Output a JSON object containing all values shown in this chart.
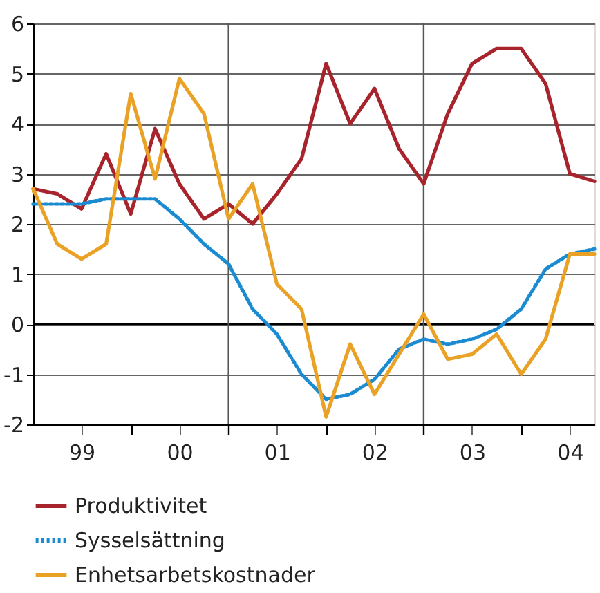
{
  "chart_data": {
    "type": "line",
    "x": [
      "1999-01-01",
      "1999-04-01",
      "1999-07-01",
      "1999-10-01",
      "2000-01-01",
      "2000-04-01",
      "2000-07-01",
      "2000-10-01",
      "2001-01-01",
      "2001-04-01",
      "2001-07-01",
      "2001-10-01",
      "2002-01-01",
      "2002-04-01",
      "2002-07-01",
      "2002-10-01",
      "2003-01-01",
      "2003-04-01",
      "2003-07-01",
      "2003-10-01",
      "2004-01-01",
      "2004-04-01",
      "2004-07-01",
      "2004-10-01"
    ],
    "series": [
      {
        "name": "Produktivitet",
        "color": "#a8242c",
        "line_style": "solid",
        "values": [
          2.7,
          2.6,
          2.3,
          3.4,
          2.2,
          3.9,
          2.8,
          2.1,
          2.4,
          2.0,
          2.6,
          3.3,
          5.2,
          4.0,
          4.7,
          3.5,
          2.8,
          4.2,
          5.2,
          5.5,
          5.5,
          4.8,
          3.0,
          2.85
        ]
      },
      {
        "name": "Sysselsättning",
        "color": "#1a8bd0",
        "line_style": "dotted",
        "values": [
          2.4,
          2.4,
          2.4,
          2.5,
          2.5,
          2.5,
          2.1,
          1.6,
          1.2,
          0.3,
          -0.2,
          -1.0,
          -1.5,
          -1.4,
          -1.1,
          -0.5,
          -0.3,
          -0.4,
          -0.3,
          -0.1,
          0.3,
          1.1,
          1.4,
          1.5
        ]
      },
      {
        "name": "Enhetsarbetskostnader",
        "color": "#e9a126",
        "line_style": "solid",
        "values": [
          2.7,
          1.6,
          1.3,
          1.6,
          4.6,
          2.9,
          4.9,
          4.2,
          2.1,
          2.8,
          0.8,
          0.3,
          -1.85,
          -0.4,
          -1.4,
          -0.6,
          0.2,
          -0.7,
          -0.6,
          -0.2,
          -1.0,
          -0.3,
          1.4,
          1.4
        ]
      }
    ],
    "xlim": [
      "1999-01-01",
      "2004-10-01"
    ],
    "xticks": [
      {
        "value": "1999-07-01",
        "label": "99"
      },
      {
        "value": "2000-01-01",
        "label": null
      },
      {
        "value": "2000-07-01",
        "label": "00"
      },
      {
        "value": "2001-01-01",
        "label": null
      },
      {
        "value": "2001-07-01",
        "label": "01"
      },
      {
        "value": "2002-01-01",
        "label": null
      },
      {
        "value": "2002-07-01",
        "label": "02"
      },
      {
        "value": "2003-01-01",
        "label": null
      },
      {
        "value": "2003-07-01",
        "label": "03"
      },
      {
        "value": "2004-01-01",
        "label": null
      },
      {
        "value": "2004-07-01",
        "label": "04"
      }
    ],
    "ylim": [
      -2,
      6
    ],
    "yticks": [
      -2,
      -1,
      0,
      1,
      2,
      3,
      4,
      5,
      6
    ],
    "grid": "y",
    "ref_lines": [
      {
        "axis": "y",
        "value": 0,
        "color": "#000000"
      },
      {
        "axis": "x",
        "value": "2001-01-01",
        "color": "#555555"
      },
      {
        "axis": "x",
        "value": "2003-01-01",
        "color": "#555555"
      }
    ],
    "legend": "bottom"
  }
}
